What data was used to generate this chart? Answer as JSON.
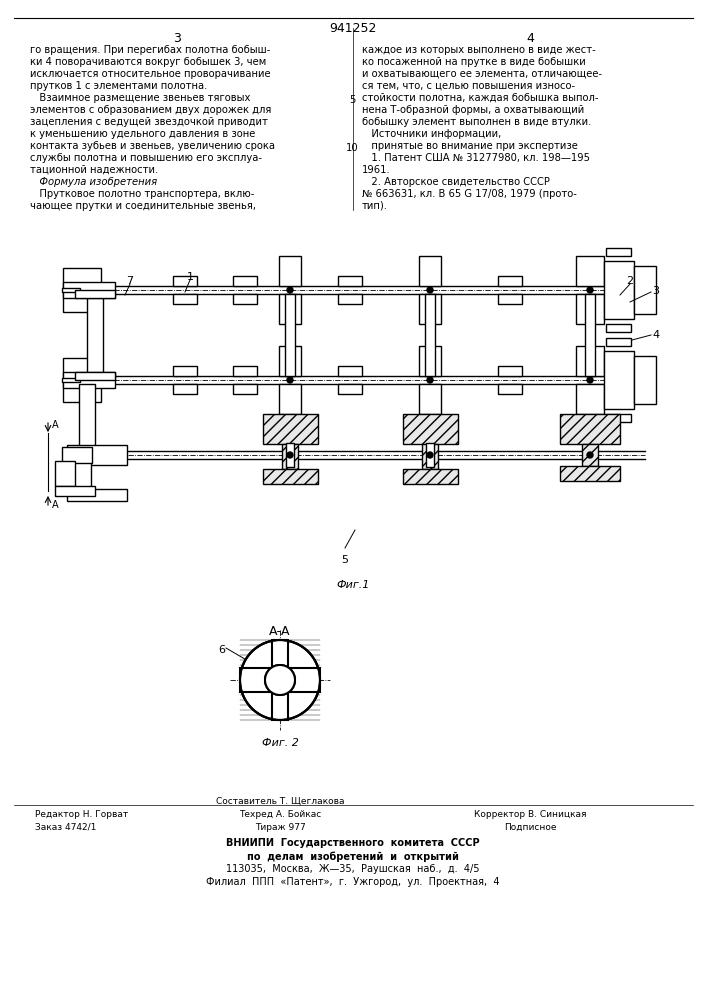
{
  "page_title": "941252",
  "col_left": "3",
  "col_right": "4",
  "text_left": "го вращения. При перегибах полотна бобыш-\nки 4 поворачиваются вокруг бобышек 3, чем\nисключается относительное проворачивание\nпрутков 1 с элементами полотна.\n   Взаимное размещение звеньев тяговых\nэлементов с образованием двух дорожек для\nзацепления с ведущей звездочкой приводит\nк уменьшению удельного давления в зоне\nконтакта зубьев и звеньев, увеличению срока\nслужбы полотна и повышению его эксплуа-\nтационной надежности.\n   Формула изобретения\n   Прутковое полотно транспортера, вклю-\nчающее прутки и соединительные звенья,",
  "text_right": "каждое из которых выполнено в виде жест-\nко посаженной на прутке в виде бобышки\nи охватывающего ее элемента, отличающее-\nся тем, что, с целью повышения износо-\nстойкости полотна, каждая бобышка выпол-\nнена Т-образной формы, а охватывающий\nбобышку элемент выполнен в виде втулки.\n   Источники информации,\n   принятые во внимание при экспертизе\n   1. Патент США № 31277980, кл. 198—195\n1961.\n   2. Авторское свидетельство СССР\n№ 663631, кл. В 65 G 17/08, 1979 (прото-\nтип).",
  "line_number": "5",
  "line_number2": "10",
  "fig1_caption": "Фиг.1",
  "fig2_caption": "Фиг. 2",
  "fig2_label": "А-А",
  "label_6": "6",
  "footer_left1": "Редактор Н. Горват",
  "footer_left2": "Заказ 4742/1",
  "footer_center1": "Составитель Т. Щеглакова",
  "footer_center2": "Техред А. Бойкас",
  "footer_center3": "Тираж 977",
  "footer_right1": "Корректор В. Синицкая",
  "footer_right2": "Подписное",
  "footer_vniiipi1": "ВНИИПИ  Государственного  комитета  СССР",
  "footer_vniiipi2": "по  делам  изобретений  и  открытий",
  "footer_vniiipi3": "113035,  Москва,  Ж—35,  Раушская  наб.,  д.  4/5",
  "footer_vniiipi4": "Филиал  ППП  «Патент»,  г.  Ужгород,  ул.  Проектная,  4",
  "bg_color": "#ffffff",
  "text_color": "#000000"
}
